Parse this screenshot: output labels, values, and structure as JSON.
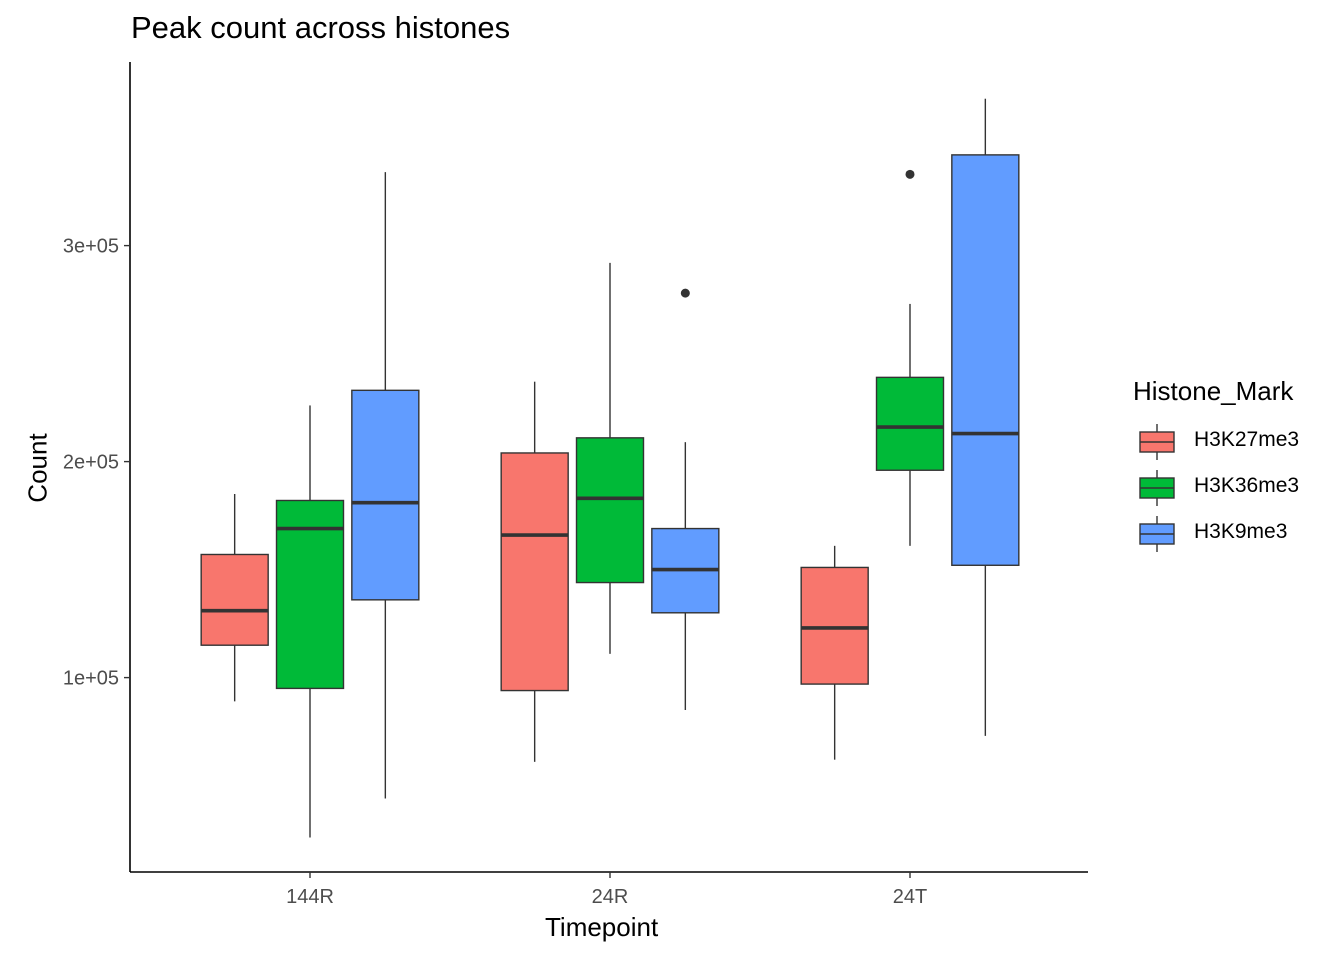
{
  "chart_data": {
    "type": "boxplot",
    "title": "Peak count across histones",
    "xlabel": "Timepoint",
    "ylabel": "Count",
    "categories": [
      "144R",
      "24R",
      "24T"
    ],
    "y_ticks": [
      100000,
      200000,
      300000
    ],
    "y_tick_labels": [
      "1e+05",
      "2e+05",
      "3e+05"
    ],
    "ylim": [
      10000,
      385000
    ],
    "grid": false,
    "legend": {
      "title": "Histone_Mark",
      "position": "right"
    },
    "series": [
      {
        "name": "H3K27me3",
        "color": "#F8766D",
        "boxes": [
          {
            "category": "144R",
            "min": 89000,
            "q1": 115000,
            "median": 131000,
            "q3": 157000,
            "max": 185000,
            "outliers": []
          },
          {
            "category": "24R",
            "min": 61000,
            "q1": 94000,
            "median": 166000,
            "q3": 204000,
            "max": 237000,
            "outliers": []
          },
          {
            "category": "24T",
            "min": 62000,
            "q1": 97000,
            "median": 123000,
            "q3": 151000,
            "max": 161000,
            "outliers": []
          }
        ]
      },
      {
        "name": "H3K36me3",
        "color": "#00BA38",
        "boxes": [
          {
            "category": "144R",
            "min": 26000,
            "q1": 95000,
            "median": 169000,
            "q3": 182000,
            "max": 226000,
            "outliers": []
          },
          {
            "category": "24R",
            "min": 111000,
            "q1": 144000,
            "median": 183000,
            "q3": 211000,
            "max": 292000,
            "outliers": []
          },
          {
            "category": "24T",
            "min": 161000,
            "q1": 196000,
            "median": 216000,
            "q3": 239000,
            "max": 273000,
            "outliers": [
              333000
            ]
          }
        ]
      },
      {
        "name": "H3K9me3",
        "color": "#619CFF",
        "boxes": [
          {
            "category": "144R",
            "min": 44000,
            "q1": 136000,
            "median": 181000,
            "q3": 233000,
            "max": 334000,
            "outliers": []
          },
          {
            "category": "24R",
            "min": 85000,
            "q1": 130000,
            "median": 150000,
            "q3": 169000,
            "max": 209000,
            "outliers": [
              278000
            ]
          },
          {
            "category": "24T",
            "min": 73000,
            "q1": 152000,
            "median": 213000,
            "q3": 342000,
            "max": 368000,
            "outliers": []
          }
        ]
      }
    ]
  }
}
